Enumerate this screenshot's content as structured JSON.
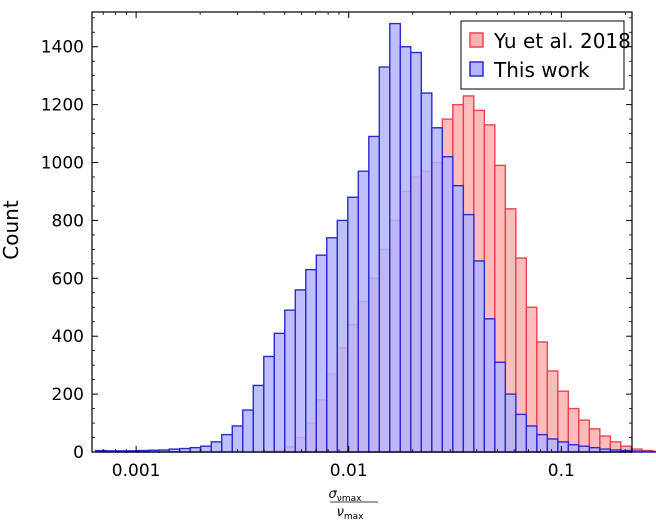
{
  "chart_data": {
    "type": "bar",
    "xscale": "log",
    "xlim": [
      0.00062,
      0.215
    ],
    "ylim": [
      0,
      1520
    ],
    "ylabel": "Count",
    "xlabel": {
      "numerator": "σ",
      "numerator_sub": "νmax",
      "denominator": "ν",
      "denominator_sub": "max"
    },
    "x_ticks": [
      {
        "value": 0.001,
        "label": "0.001"
      },
      {
        "value": 0.01,
        "label": "0.01"
      },
      {
        "value": 0.1,
        "label": "0.1"
      }
    ],
    "y_ticks": [
      {
        "value": 0,
        "label": "0"
      },
      {
        "value": 200,
        "label": "200"
      },
      {
        "value": 400,
        "label": "400"
      },
      {
        "value": 600,
        "label": "600"
      },
      {
        "value": 800,
        "label": "800"
      },
      {
        "value": 1000,
        "label": "1000"
      },
      {
        "value": 1200,
        "label": "1200"
      },
      {
        "value": 1400,
        "label": "1400"
      }
    ],
    "legend_position": "top-right",
    "bin_log10_start": -3.19,
    "bin_log10_width": 0.0494,
    "series": [
      {
        "name": "Yu et al. 2018",
        "face": "#ffb0b0",
        "edge": "#e8454f",
        "values": [
          0,
          0,
          0,
          0,
          0,
          0,
          0,
          0,
          0,
          0,
          0,
          0,
          0,
          0,
          0,
          0,
          2,
          4,
          18,
          50,
          100,
          180,
          270,
          360,
          440,
          520,
          600,
          700,
          800,
          900,
          950,
          970,
          1000,
          1150,
          1200,
          1230,
          1180,
          1130,
          990,
          840,
          670,
          500,
          380,
          280,
          210,
          150,
          110,
          80,
          55,
          35,
          20,
          10,
          5,
          3,
          2,
          2
        ]
      },
      {
        "name": "This work",
        "face": "#b4b4ff",
        "edge": "#2b2bd0",
        "values": [
          5,
          4,
          4,
          4,
          5,
          6,
          7,
          10,
          12,
          15,
          20,
          35,
          60,
          90,
          145,
          230,
          330,
          410,
          490,
          560,
          630,
          680,
          740,
          800,
          880,
          970,
          1090,
          1330,
          1480,
          1400,
          1380,
          1240,
          1120,
          1020,
          920,
          820,
          660,
          460,
          310,
          200,
          130,
          90,
          60,
          45,
          35,
          25,
          20,
          15,
          10,
          7,
          5,
          3,
          2,
          1,
          1
        ]
      }
    ]
  }
}
